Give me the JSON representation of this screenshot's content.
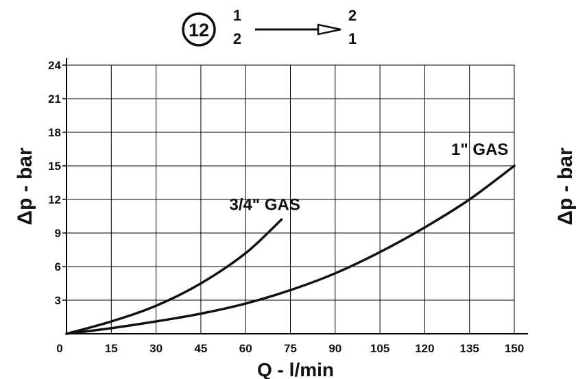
{
  "header": {
    "circle_number": "12",
    "left_top": "1",
    "left_bottom": "2",
    "right_top": "2",
    "right_bottom": "1"
  },
  "chart_data": {
    "type": "line",
    "xlabel": "Q - l/min",
    "ylabel": "Δp - bar",
    "right_edge_label": "Δp - bar",
    "xlim": [
      0,
      150
    ],
    "ylim": [
      0,
      24
    ],
    "x_ticks": [
      "0",
      "15",
      "30",
      "45",
      "60",
      "75",
      "90",
      "105",
      "120",
      "135",
      "150"
    ],
    "y_ticks": [
      "3",
      "6",
      "9",
      "12",
      "15",
      "18",
      "21",
      "24"
    ],
    "grid": true,
    "series": [
      {
        "name": "3/4\" GAS",
        "x": [
          0,
          15,
          30,
          45,
          60,
          72
        ],
        "y": [
          0.0,
          1.1,
          2.5,
          4.5,
          7.2,
          10.2
        ]
      },
      {
        "name": "1\" GAS",
        "x": [
          0,
          15,
          30,
          45,
          60,
          75,
          90,
          105,
          120,
          135,
          150
        ],
        "y": [
          0.0,
          0.5,
          1.1,
          1.8,
          2.7,
          3.9,
          5.4,
          7.3,
          9.5,
          12.0,
          15.0
        ]
      }
    ],
    "colors": {
      "line": "#111111",
      "grid": "#000000",
      "background": "#ffffff"
    }
  }
}
